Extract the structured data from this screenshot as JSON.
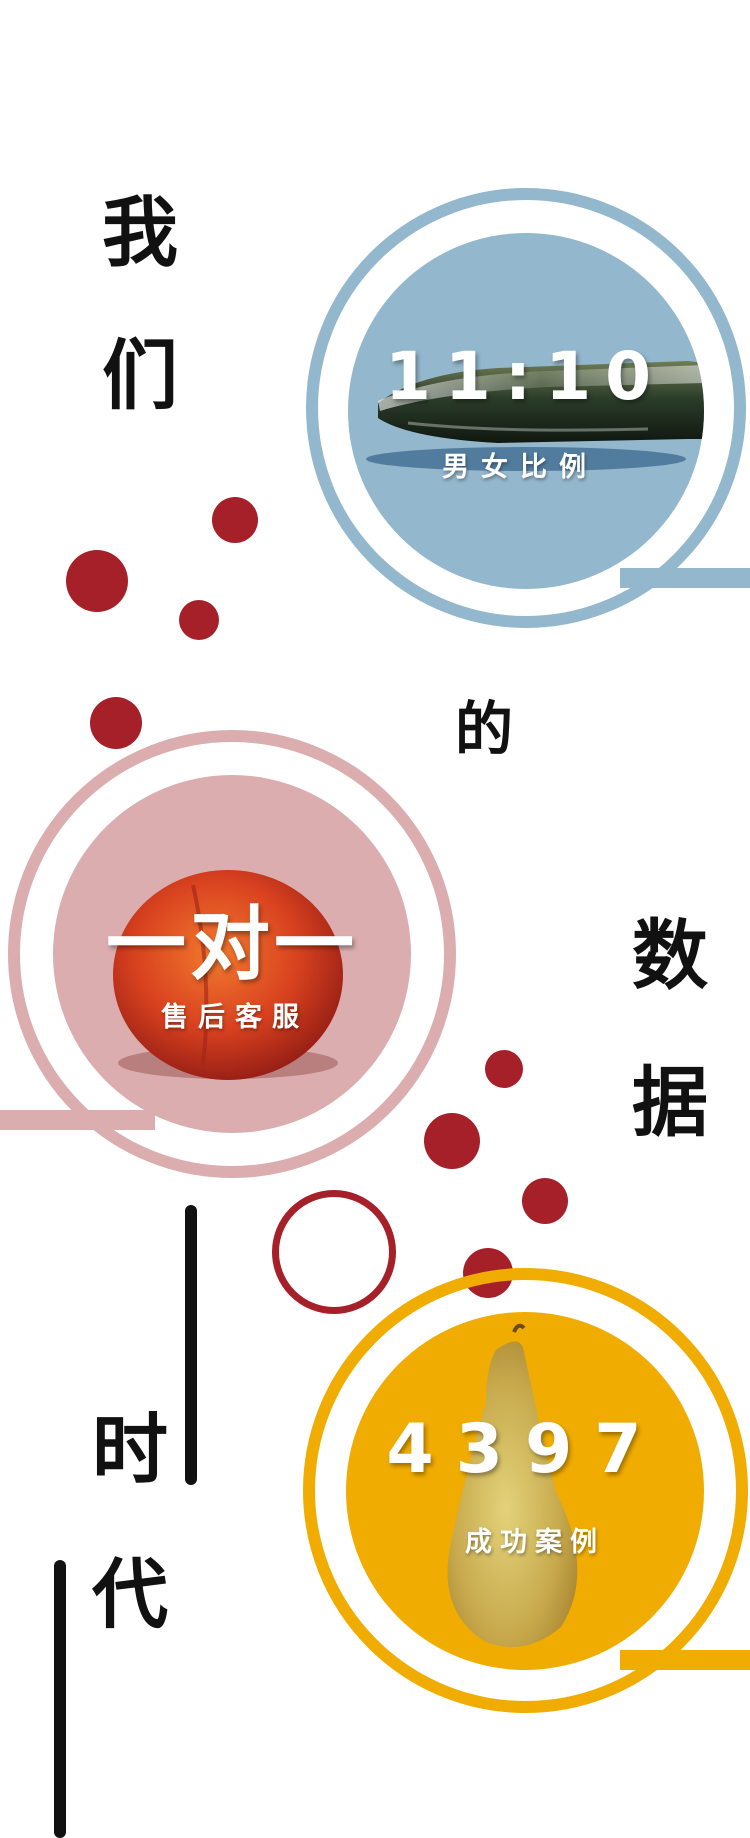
{
  "headline_chars": [
    "我",
    "们",
    "的",
    "数",
    "据",
    "时",
    "代"
  ],
  "stats": [
    {
      "value": "11:10",
      "label": "男女比例"
    },
    {
      "value": "一对一",
      "label": "售后客服"
    },
    {
      "value": "4397",
      "label": "成功案例"
    }
  ],
  "colors": {
    "blue": "#93b7cc",
    "pink": "#dbadae",
    "yellow": "#f0ac00",
    "red_dot": "#a6202a",
    "text_dark": "#111111"
  },
  "icons": [
    "cucumber-image",
    "peach-image",
    "pear-image"
  ]
}
